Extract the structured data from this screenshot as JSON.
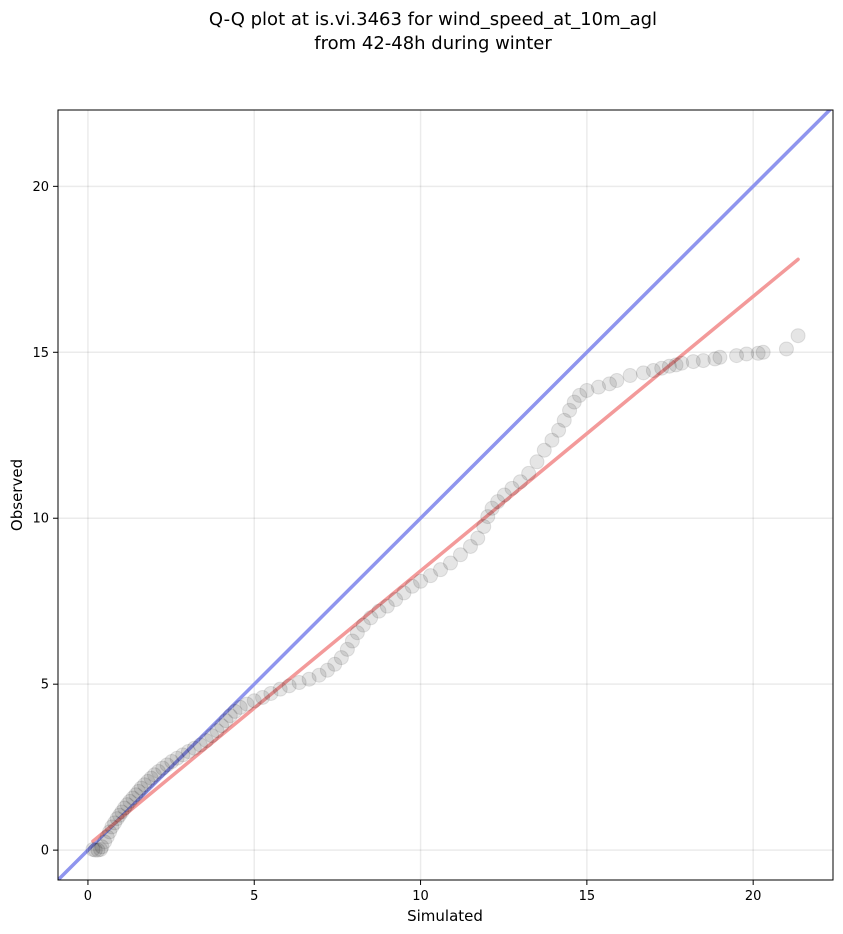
{
  "chart_data": {
    "type": "scatter",
    "title": [
      "Q-Q plot at is.vi.3463 for wind_speed_at_10m_agl",
      "from 42-48h during winter"
    ],
    "xlabel": "Simulated",
    "ylabel": "Observed",
    "xlim": [
      -0.9,
      22.4
    ],
    "ylim": [
      -0.9,
      22.3
    ],
    "xticks": [
      0,
      5,
      10,
      15,
      20
    ],
    "yticks": [
      0,
      5,
      10,
      15,
      20
    ],
    "grid": true,
    "identity_line": {
      "color": "#8f95ee",
      "from": [
        -0.9,
        -0.9
      ],
      "to": [
        22.4,
        22.4
      ]
    },
    "fit_line": {
      "color": "#f39a9a",
      "from": [
        0.15,
        0.27
      ],
      "to": [
        21.35,
        17.8
      ]
    },
    "points_color": "#000000",
    "series": [
      {
        "values": [
          [
            0.15,
            0.02
          ],
          [
            0.22,
            0.0
          ],
          [
            0.3,
            0.0
          ],
          [
            0.38,
            0.02
          ],
          [
            0.42,
            0.1
          ],
          [
            0.5,
            0.25
          ],
          [
            0.58,
            0.4
          ],
          [
            0.65,
            0.55
          ],
          [
            0.72,
            0.7
          ],
          [
            0.8,
            0.82
          ],
          [
            0.88,
            0.95
          ],
          [
            0.95,
            1.05
          ],
          [
            1.02,
            1.15
          ],
          [
            1.1,
            1.27
          ],
          [
            1.18,
            1.37
          ],
          [
            1.26,
            1.47
          ],
          [
            1.35,
            1.57
          ],
          [
            1.44,
            1.67
          ],
          [
            1.52,
            1.77
          ],
          [
            1.6,
            1.87
          ],
          [
            1.7,
            1.97
          ],
          [
            1.8,
            2.07
          ],
          [
            1.9,
            2.17
          ],
          [
            2.0,
            2.27
          ],
          [
            2.12,
            2.37
          ],
          [
            2.25,
            2.47
          ],
          [
            2.38,
            2.57
          ],
          [
            2.52,
            2.67
          ],
          [
            2.68,
            2.77
          ],
          [
            2.85,
            2.87
          ],
          [
            3.02,
            2.97
          ],
          [
            3.2,
            3.07
          ],
          [
            3.38,
            3.17
          ],
          [
            3.56,
            3.3
          ],
          [
            3.72,
            3.45
          ],
          [
            3.88,
            3.6
          ],
          [
            4.02,
            3.75
          ],
          [
            4.15,
            3.9
          ],
          [
            4.28,
            4.05
          ],
          [
            4.42,
            4.18
          ],
          [
            4.58,
            4.3
          ],
          [
            4.78,
            4.4
          ],
          [
            5.0,
            4.5
          ],
          [
            5.25,
            4.6
          ],
          [
            5.5,
            4.72
          ],
          [
            5.78,
            4.85
          ],
          [
            6.05,
            4.95
          ],
          [
            6.35,
            5.05
          ],
          [
            6.65,
            5.15
          ],
          [
            6.95,
            5.27
          ],
          [
            7.2,
            5.42
          ],
          [
            7.42,
            5.6
          ],
          [
            7.62,
            5.8
          ],
          [
            7.8,
            6.05
          ],
          [
            7.95,
            6.3
          ],
          [
            8.1,
            6.55
          ],
          [
            8.28,
            6.78
          ],
          [
            8.5,
            7.0
          ],
          [
            8.75,
            7.2
          ],
          [
            9.0,
            7.35
          ],
          [
            9.25,
            7.55
          ],
          [
            9.5,
            7.75
          ],
          [
            9.75,
            7.95
          ],
          [
            10.0,
            8.1
          ],
          [
            10.3,
            8.27
          ],
          [
            10.6,
            8.45
          ],
          [
            10.9,
            8.65
          ],
          [
            11.2,
            8.9
          ],
          [
            11.5,
            9.15
          ],
          [
            11.72,
            9.4
          ],
          [
            11.9,
            9.75
          ],
          [
            12.02,
            10.05
          ],
          [
            12.15,
            10.3
          ],
          [
            12.32,
            10.5
          ],
          [
            12.52,
            10.7
          ],
          [
            12.75,
            10.9
          ],
          [
            13.0,
            11.1
          ],
          [
            13.25,
            11.35
          ],
          [
            13.5,
            11.7
          ],
          [
            13.72,
            12.05
          ],
          [
            13.95,
            12.35
          ],
          [
            14.15,
            12.65
          ],
          [
            14.32,
            12.95
          ],
          [
            14.48,
            13.25
          ],
          [
            14.62,
            13.5
          ],
          [
            14.78,
            13.7
          ],
          [
            15.0,
            13.85
          ],
          [
            15.35,
            13.95
          ],
          [
            15.68,
            14.05
          ],
          [
            15.9,
            14.15
          ],
          [
            16.3,
            14.3
          ],
          [
            16.7,
            14.38
          ],
          [
            17.0,
            14.45
          ],
          [
            17.25,
            14.52
          ],
          [
            17.48,
            14.58
          ],
          [
            17.68,
            14.62
          ],
          [
            17.85,
            14.67
          ],
          [
            18.2,
            14.72
          ],
          [
            18.5,
            14.75
          ],
          [
            18.85,
            14.8
          ],
          [
            19.0,
            14.85
          ],
          [
            19.5,
            14.9
          ],
          [
            19.8,
            14.95
          ],
          [
            20.15,
            14.97
          ],
          [
            20.3,
            15.0
          ],
          [
            21.0,
            15.1
          ],
          [
            21.35,
            15.5
          ]
        ]
      }
    ]
  }
}
